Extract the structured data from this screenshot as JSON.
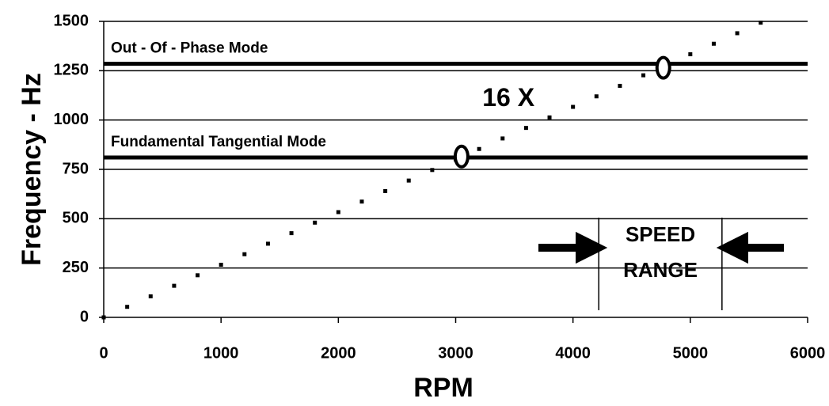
{
  "chart_data": {
    "type": "scatter",
    "x_label": "RPM",
    "y_label": "Frequency - Hz",
    "xlim": [
      0,
      6000
    ],
    "xticks": [
      0,
      1000,
      2000,
      3000,
      4000,
      5000,
      6000
    ],
    "ylim": [
      0,
      1500
    ],
    "yticks": [
      0,
      250,
      500,
      750,
      1000,
      1250,
      1500
    ],
    "grid": true,
    "series": [
      {
        "name": "16 X",
        "color": "#000000",
        "x": [
          0,
          200,
          400,
          600,
          800,
          1000,
          1200,
          1400,
          1600,
          1800,
          2000,
          2200,
          2400,
          2600,
          2800,
          3000,
          3200,
          3400,
          3600,
          3800,
          4000,
          4200,
          4400,
          4600,
          4800,
          5000,
          5200,
          5400,
          5600
        ],
        "values": [
          0,
          53.3,
          106.7,
          160,
          213.3,
          266.7,
          320,
          373.3,
          426.7,
          480,
          533.3,
          586.7,
          640,
          693.3,
          746.7,
          800,
          853.3,
          906.7,
          960,
          1013.3,
          1066.7,
          1120,
          1173.3,
          1226.7,
          1280,
          1333.3,
          1386.7,
          1440,
          1493.3
        ]
      }
    ],
    "annotation": {
      "text": "16 X",
      "x": 3450,
      "y": 1105
    },
    "reference_lines": [
      {
        "label": "Out - Of - Phase Mode",
        "value": 1285
      },
      {
        "label": "Fundamental Tangential Mode",
        "value": 810
      }
    ],
    "markers": [
      {
        "x": 3050,
        "y": 815
      },
      {
        "x": 4770,
        "y": 1265
      }
    ],
    "speed_range": {
      "label_lines": [
        "SPEED",
        "RANGE"
      ],
      "x": [
        4220,
        5270
      ]
    }
  }
}
